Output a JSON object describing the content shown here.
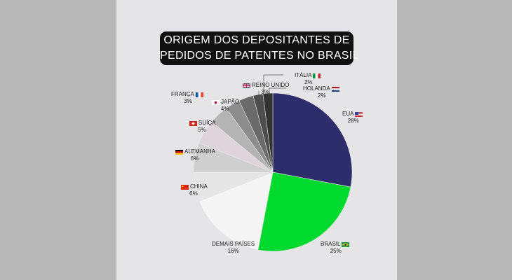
{
  "title": {
    "line1": "ORIGEM DOS DEPOSITANTES DE",
    "line2": "PEDIDOS DE PATENTES NO BRASIL"
  },
  "chart_data": {
    "type": "pie",
    "title": "ORIGEM DOS DEPOSITANTES DE PEDIDOS DE PATENTES NO BRASIL",
    "categories": [
      "EUA",
      "BRASIL",
      "DEMAIS PAÍSES",
      "CHINA",
      "ALEMANHA",
      "SUÍÇA",
      "JAPÃO",
      "FRANÇA",
      "REINO UNIDO",
      "ITÁLIA",
      "HOLANDA"
    ],
    "values": [
      28,
      25,
      16,
      6,
      6,
      5,
      4,
      3,
      3,
      2,
      2
    ],
    "value_labels": [
      "28%",
      "25%",
      "16%",
      "6%",
      "6%",
      "5%",
      "4%",
      "3%",
      "3%",
      "2%",
      "2%"
    ],
    "colors": [
      "#2e2d6c",
      "#00d92e",
      "#f5f5f5",
      "#e6e6e6",
      "#cfcfcf",
      "#dfd4da",
      "#b4b4b4",
      "#8d8d8d",
      "#6a6a6a",
      "#4d4d4d",
      "#333333"
    ],
    "flag_icons": [
      "us-flag-icon",
      "brazil-flag-icon",
      "",
      "china-flag-icon",
      "germany-flag-icon",
      "switzerland-flag-icon",
      "japan-flag-icon",
      "france-flag-icon",
      "uk-flag-icon",
      "italy-flag-icon",
      "netherlands-flag-icon"
    ]
  }
}
